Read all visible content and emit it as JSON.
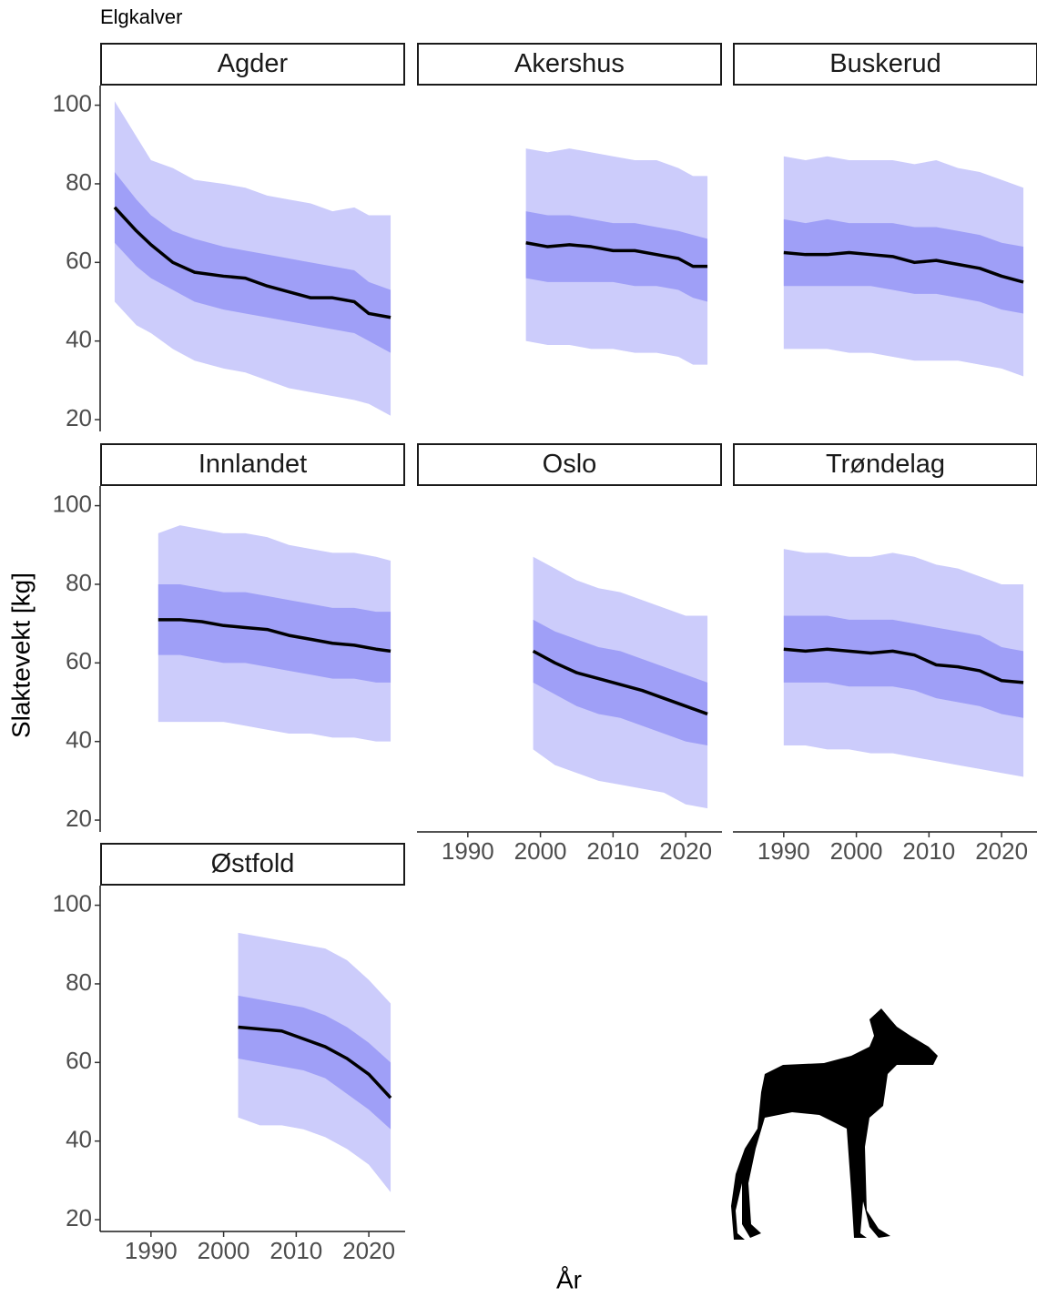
{
  "title": "Elgkalver",
  "ylabel": "Slaktevekt [kg]",
  "xlabel": "År",
  "xlim": [
    1983,
    2025
  ],
  "ylim": [
    17,
    105
  ],
  "xticks": [
    1990,
    2000,
    2010,
    2020
  ],
  "yticks": [
    20,
    40,
    60,
    80,
    100
  ],
  "line_color": "#000000",
  "inner_color": "#9f9ff7",
  "outer_color": "#ccccfb",
  "chart_data": [
    {
      "type": "line",
      "title": "Agder",
      "x": [
        1985,
        1988,
        1990,
        1993,
        1996,
        2000,
        2003,
        2006,
        2009,
        2012,
        2015,
        2018,
        2020,
        2023
      ],
      "values": [
        74,
        68,
        64.5,
        60,
        57.5,
        56.5,
        56,
        54,
        52.5,
        51,
        51,
        50,
        47,
        46
      ],
      "inner_upper": [
        83,
        76,
        72,
        68,
        66,
        64,
        63,
        62,
        61,
        60,
        59,
        58,
        55,
        53
      ],
      "inner_lower": [
        65,
        59,
        56,
        53,
        50,
        48,
        47,
        46,
        45,
        44,
        43,
        42,
        40,
        37
      ],
      "outer_upper": [
        101,
        92,
        86,
        84,
        81,
        80,
        79,
        77,
        76,
        75,
        73,
        74,
        72,
        72
      ],
      "outer_lower": [
        50,
        44,
        42,
        38,
        35,
        33,
        32,
        30,
        28,
        27,
        26,
        25,
        24,
        21
      ]
    },
    {
      "type": "line",
      "title": "Akershus",
      "x": [
        1998,
        2001,
        2004,
        2007,
        2010,
        2013,
        2016,
        2019,
        2021,
        2023
      ],
      "values": [
        65,
        64,
        64.5,
        64,
        63,
        63,
        62,
        61,
        59,
        59
      ],
      "inner_upper": [
        73,
        72,
        72,
        71,
        70,
        70,
        69,
        68,
        67,
        66
      ],
      "inner_lower": [
        56,
        55,
        55,
        55,
        55,
        54,
        54,
        53,
        51,
        50
      ],
      "outer_upper": [
        89,
        88,
        89,
        88,
        87,
        86,
        86,
        84,
        82,
        82
      ],
      "outer_lower": [
        40,
        39,
        39,
        38,
        38,
        37,
        37,
        36,
        34,
        34
      ]
    },
    {
      "type": "line",
      "title": "Buskerud",
      "x": [
        1990,
        1993,
        1996,
        1999,
        2002,
        2005,
        2008,
        2011,
        2014,
        2017,
        2020,
        2023
      ],
      "values": [
        62.5,
        62,
        62,
        62.5,
        62,
        61.5,
        60,
        60.5,
        59.5,
        58.5,
        56.5,
        55
      ],
      "inner_upper": [
        71,
        70,
        71,
        70,
        70,
        70,
        69,
        69,
        68,
        67,
        65,
        64
      ],
      "inner_lower": [
        54,
        54,
        54,
        54,
        54,
        53,
        52,
        52,
        51,
        50,
        48,
        47
      ],
      "outer_upper": [
        87,
        86,
        87,
        86,
        86,
        86,
        85,
        86,
        84,
        83,
        81,
        79
      ],
      "outer_lower": [
        38,
        38,
        38,
        37,
        37,
        36,
        35,
        35,
        35,
        34,
        33,
        31
      ]
    },
    {
      "type": "line",
      "title": "Innlandet",
      "x": [
        1991,
        1994,
        1997,
        2000,
        2003,
        2006,
        2009,
        2012,
        2015,
        2018,
        2021,
        2023
      ],
      "values": [
        71,
        71,
        70.5,
        69.5,
        69,
        68.5,
        67,
        66,
        65,
        64.5,
        63.5,
        63
      ],
      "inner_upper": [
        80,
        80,
        79,
        78,
        78,
        77,
        76,
        75,
        74,
        74,
        73,
        73
      ],
      "inner_lower": [
        62,
        62,
        61,
        60,
        60,
        59,
        58,
        57,
        56,
        56,
        55,
        55
      ],
      "outer_upper": [
        93,
        95,
        94,
        93,
        93,
        92,
        90,
        89,
        88,
        88,
        87,
        86
      ],
      "outer_lower": [
        45,
        45,
        45,
        45,
        44,
        43,
        42,
        42,
        41,
        41,
        40,
        40
      ]
    },
    {
      "type": "line",
      "title": "Oslo",
      "x": [
        1999,
        2002,
        2005,
        2008,
        2011,
        2014,
        2017,
        2020,
        2023
      ],
      "values": [
        63,
        60,
        57.5,
        56,
        54.5,
        53,
        51,
        49,
        47
      ],
      "inner_upper": [
        71,
        68,
        66,
        64,
        63,
        61,
        59,
        57,
        55
      ],
      "inner_lower": [
        55,
        52,
        49,
        47,
        46,
        44,
        42,
        40,
        39
      ],
      "outer_upper": [
        87,
        84,
        81,
        79,
        78,
        76,
        74,
        72,
        72
      ],
      "outer_lower": [
        38,
        34,
        32,
        30,
        29,
        28,
        27,
        24,
        23
      ]
    },
    {
      "type": "line",
      "title": "Trøndelag",
      "x": [
        1990,
        1993,
        1996,
        1999,
        2002,
        2005,
        2008,
        2011,
        2014,
        2017,
        2020,
        2023
      ],
      "values": [
        63.5,
        63,
        63.5,
        63,
        62.5,
        63,
        62,
        59.5,
        59,
        58,
        55.5,
        55
      ],
      "inner_upper": [
        72,
        72,
        72,
        71,
        71,
        71,
        70,
        69,
        68,
        67,
        64,
        63
      ],
      "inner_lower": [
        55,
        55,
        55,
        54,
        54,
        54,
        53,
        51,
        50,
        49,
        47,
        46
      ],
      "outer_upper": [
        89,
        88,
        88,
        87,
        87,
        88,
        87,
        85,
        84,
        82,
        80,
        80
      ],
      "outer_lower": [
        39,
        39,
        38,
        38,
        37,
        37,
        36,
        35,
        34,
        33,
        32,
        31
      ]
    },
    {
      "type": "line",
      "title": "Østfold",
      "x": [
        2002,
        2005,
        2008,
        2011,
        2014,
        2017,
        2020,
        2023
      ],
      "values": [
        69,
        68.5,
        68,
        66,
        64,
        61,
        57,
        51
      ],
      "inner_upper": [
        77,
        76,
        75,
        74,
        72,
        69,
        65,
        60
      ],
      "inner_lower": [
        61,
        60,
        59,
        58,
        56,
        52,
        48,
        43
      ],
      "outer_upper": [
        93,
        92,
        91,
        90,
        89,
        86,
        81,
        75
      ],
      "outer_lower": [
        46,
        44,
        44,
        43,
        41,
        38,
        34,
        27
      ]
    }
  ]
}
